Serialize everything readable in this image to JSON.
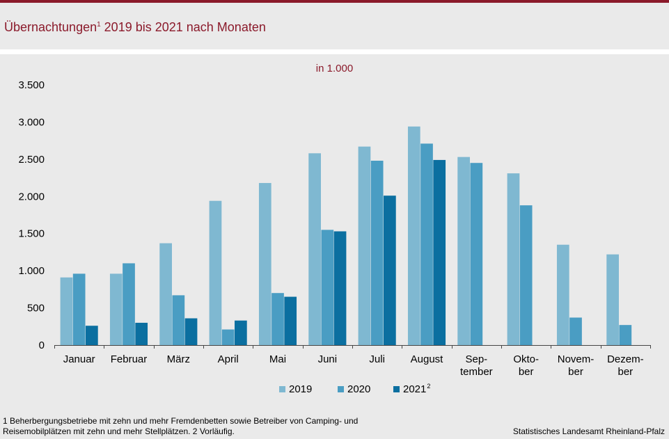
{
  "title": {
    "main": "Übernachtungen",
    "sup": "1",
    "rest": " 2019 bis 2021 nach Monaten"
  },
  "colors": {
    "s2019": "#7fb8d1",
    "s2020": "#4a9dc3",
    "s2021": "#0b6fa0",
    "brand": "#8b1a2b"
  },
  "chart_data": {
    "type": "bar",
    "title": "Übernachtungen 2019 bis 2021 nach Monaten",
    "unit_label": "in 1.000",
    "xlabel": "",
    "ylabel": "",
    "ylim": [
      0,
      3500
    ],
    "yticks": [
      0,
      500,
      1000,
      1500,
      2000,
      2500,
      3000,
      3500
    ],
    "ytick_labels": [
      "0",
      "500",
      "1.000",
      "1.500",
      "2.000",
      "2.500",
      "3.000",
      "3.500"
    ],
    "categories": [
      "Januar",
      "Februar",
      "März",
      "April",
      "Mai",
      "Juni",
      "Juli",
      "August",
      "Sep-\ntember",
      "Okto-\nber",
      "Novem-\nber",
      "Dezem-\nber"
    ],
    "series": [
      {
        "name": "2019",
        "sup": "",
        "values": [
          910,
          960,
          1370,
          1940,
          2180,
          2580,
          2670,
          2940,
          2530,
          2310,
          1350,
          1220
        ]
      },
      {
        "name": "2020",
        "sup": "",
        "values": [
          960,
          1100,
          670,
          210,
          700,
          1550,
          2480,
          2710,
          2450,
          1880,
          370,
          270
        ]
      },
      {
        "name": "2021",
        "sup": "2",
        "values": [
          260,
          300,
          360,
          330,
          650,
          1530,
          2010,
          2490,
          null,
          null,
          null,
          null
        ]
      }
    ],
    "legend_position": "bottom"
  },
  "footnote": "1 Beherbergungsbetriebe mit zehn und mehr Fremdenbetten sowie Betreiber von Camping- und Reisemobilplätzen mit zehn und mehr Stellplätzen. 2 Vorläufig.",
  "source": "Statistisches Landesamt Rheinland-Pfalz"
}
